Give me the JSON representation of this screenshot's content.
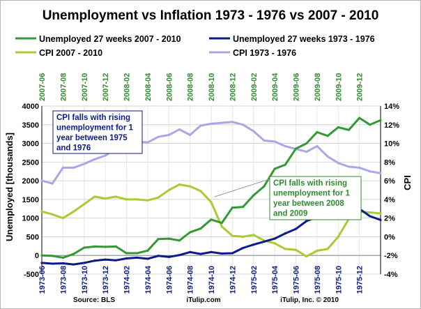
{
  "chart_data": {
    "type": "line",
    "title": "Unemployment vs Inflation 1973 - 1976 vs 2007 - 2010",
    "ylabel_left": "Unemployed [thousands]",
    "ylabel_right": "CPI",
    "ylim_left": [
      -500,
      4000
    ],
    "yticks_left": [
      "-500",
      "0",
      "500",
      "1000",
      "1500",
      "2000",
      "2500",
      "3000",
      "3500",
      "4000"
    ],
    "ylim_right": [
      -4,
      14
    ],
    "yticks_right": [
      "-4%",
      "-2%",
      "0%",
      "2%",
      "4%",
      "6%",
      "8%",
      "10%",
      "12%",
      "14%"
    ],
    "x_top_labels": [
      "2007-06",
      "2007-08",
      "2007-10",
      "2007-12",
      "2008-02",
      "2008-04",
      "2008-06",
      "2008-08",
      "2008-10",
      "2008-12",
      "2009-02",
      "2009-04",
      "2009-06",
      "2009-08",
      "2009-10",
      "2009-12"
    ],
    "x_bottom_labels": [
      "1973-06",
      "1973-08",
      "1973-10",
      "1973-12",
      "1974-02",
      "1974-04",
      "1974-06",
      "1974-08",
      "1974-10",
      "1974-12",
      "1975-02",
      "1975-04",
      "1975-06",
      "1975-08",
      "1975-10",
      "1975-12"
    ],
    "grid": true,
    "legend_position": "top",
    "series": [
      {
        "name": "Unemployed 27 weeks 2007 - 2010",
        "axis": "left",
        "color": "#339933",
        "values": [
          0,
          -10,
          -60,
          40,
          210,
          240,
          230,
          240,
          60,
          60,
          130,
          440,
          450,
          400,
          620,
          720,
          960,
          870,
          1280,
          1300,
          1610,
          1850,
          2320,
          2430,
          2860,
          3000,
          3300,
          3200,
          3430,
          3360,
          3680,
          3500,
          3620
        ]
      },
      {
        "name": "Unemployed 27 weeks 1973 - 1976",
        "axis": "left",
        "color": "#0d1a8c",
        "values": [
          -200,
          -220,
          -210,
          -240,
          -200,
          -140,
          -110,
          -130,
          -80,
          -60,
          -90,
          -10,
          -40,
          10,
          90,
          40,
          90,
          50,
          60,
          200,
          290,
          370,
          450,
          590,
          710,
          920,
          1030,
          1000,
          1080,
          1130,
          1250,
          1050,
          950
        ]
      },
      {
        "name": "CPI 2007 - 2010",
        "axis": "right",
        "color": "#a8cc33",
        "values": [
          2.7,
          2.4,
          2.0,
          2.7,
          3.5,
          4.3,
          4.1,
          4.3,
          4.0,
          4.0,
          3.9,
          4.2,
          5.0,
          5.6,
          5.4,
          4.9,
          3.7,
          1.1,
          0.1,
          0.0,
          0.2,
          -0.4,
          -0.7,
          -1.3,
          -1.4,
          -2.1,
          -1.5,
          -1.3,
          0.0,
          1.9,
          2.7,
          2.6,
          2.5
        ]
      },
      {
        "name": "CPI 1973 - 1976",
        "axis": "right",
        "color": "#a8a8e6",
        "values": [
          6.0,
          5.7,
          7.4,
          7.4,
          7.8,
          8.3,
          8.7,
          9.4,
          10.0,
          10.2,
          10.1,
          10.7,
          10.9,
          11.5,
          10.9,
          11.9,
          12.1,
          12.2,
          12.3,
          12.0,
          11.3,
          10.3,
          10.2,
          9.7,
          9.4,
          9.1,
          9.7,
          8.6,
          7.9,
          7.5,
          7.4,
          7.0,
          6.8
        ]
      }
    ],
    "annotations": [
      {
        "lines": [
          "CPI falls with rising",
          "unemployment for 1",
          "year between 1975",
          "and 1976"
        ],
        "color": "#0d1a8c"
      },
      {
        "lines": [
          "CPI falls with rising",
          "unemployment for 1",
          "year between 2008",
          "and 2009"
        ],
        "color": "#2e8b2e"
      }
    ],
    "footer": {
      "source": "Source: BLS",
      "site": "iTulip.com",
      "copyright": "iTulip, Inc. © 2010"
    }
  }
}
